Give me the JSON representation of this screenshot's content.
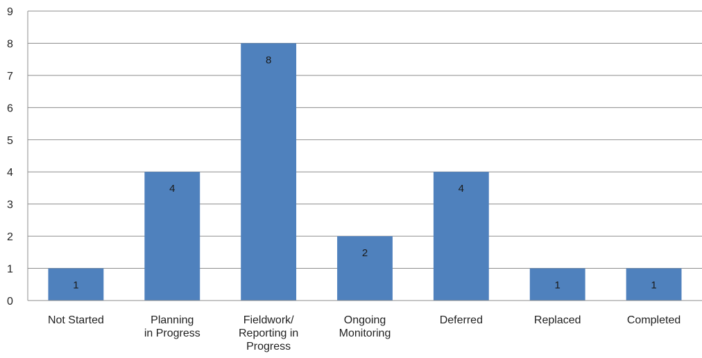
{
  "chart_data": {
    "type": "bar",
    "title": "",
    "xlabel": "",
    "ylabel": "",
    "categories": [
      "Not Started",
      "Planning in Progress",
      "Fieldwork/ Reporting in Progress",
      "Ongoing Monitoring",
      "Deferred",
      "Replaced",
      "Completed"
    ],
    "category_lines": [
      [
        "Not Started"
      ],
      [
        "Planning",
        "in Progress"
      ],
      [
        "Fieldwork/",
        "Reporting in",
        "Progress"
      ],
      [
        "Ongoing",
        "Monitoring"
      ],
      [
        "Deferred"
      ],
      [
        "Replaced"
      ],
      [
        "Completed"
      ]
    ],
    "values": [
      1,
      4,
      8,
      2,
      4,
      1,
      1
    ],
    "data_labels": [
      "1",
      "4",
      "8",
      "2",
      "4",
      "1",
      "1"
    ],
    "ylim": [
      0,
      9
    ],
    "yticks": [
      0,
      1,
      2,
      3,
      4,
      5,
      6,
      7,
      8,
      9
    ],
    "grid": true,
    "legend": "none",
    "bar_color": "#4F81BD"
  }
}
